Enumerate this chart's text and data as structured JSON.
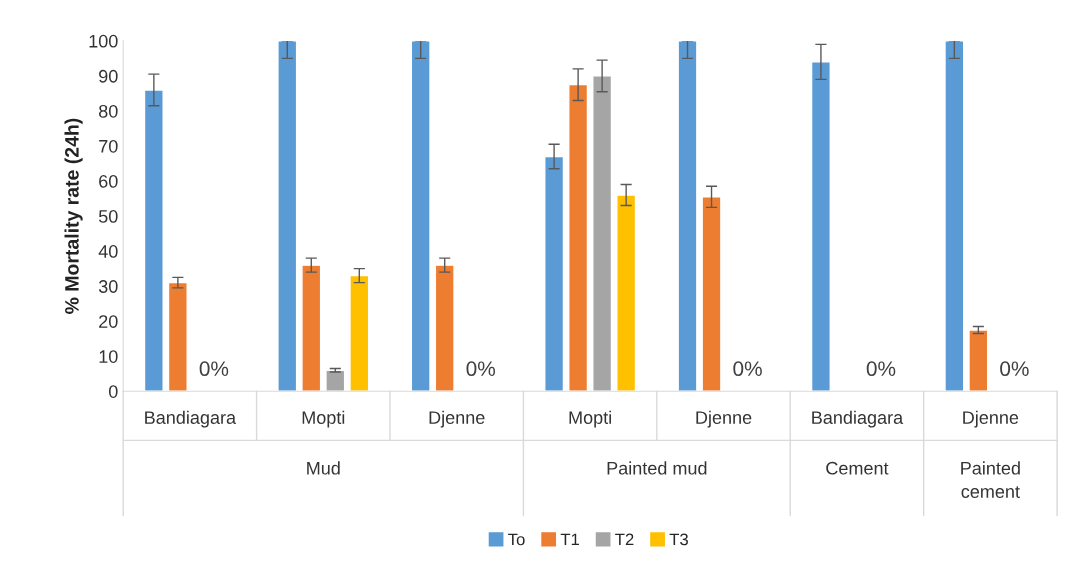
{
  "chart_data": {
    "type": "bar",
    "ylabel": "% Mortality rate (24h)",
    "categories": [
      "Bandiagara",
      "Mopti",
      "Djenne",
      "Mopti",
      "Djenne",
      "Bandiagara",
      "Djenne"
    ],
    "annotations": [
      "Mud",
      "Painted mud",
      "Cement",
      "Painted\ncement"
    ],
    "series": [
      {
        "name": "To",
        "color": "#5b9bd5",
        "values": [
          86,
          100,
          100,
          67,
          100,
          94,
          100
        ],
        "errors": [
          [
            81.5,
            90.5
          ],
          [
            95,
            100
          ],
          [
            95,
            100
          ],
          [
            63.5,
            70.5
          ],
          [
            95,
            100
          ],
          [
            89,
            99
          ],
          [
            95,
            100
          ]
        ]
      },
      {
        "name": "T1",
        "color": "#ed7d31",
        "values": [
          31,
          36,
          36,
          87.5,
          55.5,
          null,
          17.5
        ],
        "errors": [
          [
            29.5,
            32.5
          ],
          [
            34,
            38
          ],
          [
            34,
            38
          ],
          [
            83,
            92
          ],
          [
            52.5,
            58.5
          ],
          null,
          [
            16.5,
            18.5
          ]
        ]
      },
      {
        "name": "T2",
        "color": "#a5a5a5",
        "values": [
          null,
          6,
          null,
          90,
          null,
          null,
          null
        ],
        "errors": [
          null,
          [
            5.5,
            6.5
          ],
          null,
          [
            85.5,
            94.5
          ],
          null,
          null,
          null
        ],
        "value_labels": [
          "0%",
          null,
          "0%",
          null,
          "0%",
          "0%",
          "0%"
        ]
      },
      {
        "name": "T3",
        "color": "#ffc000",
        "values": [
          null,
          33,
          null,
          56,
          null,
          null,
          null
        ],
        "errors": [
          null,
          [
            31,
            35
          ],
          null,
          [
            53,
            59
          ],
          null,
          null,
          null
        ]
      }
    ],
    "ylim": [
      0,
      100
    ],
    "yticks": [
      0,
      10,
      20,
      30,
      40,
      50,
      60,
      70,
      80,
      90,
      100
    ],
    "grid": false,
    "legend": "bottom"
  }
}
